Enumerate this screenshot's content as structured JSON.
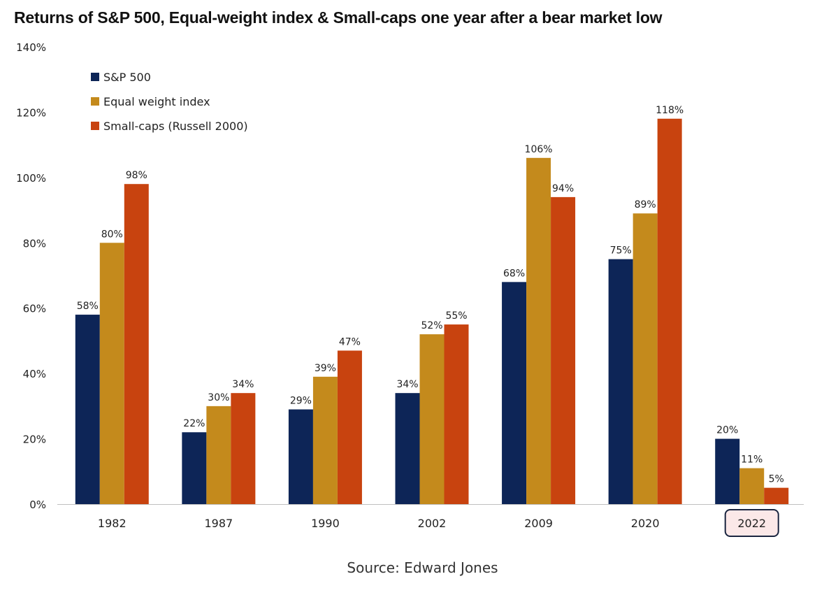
{
  "chart_data": {
    "type": "bar",
    "title": "Returns of S&P 500, Equal-weight index & Small-caps one year after a bear market low",
    "categories": [
      "1982",
      "1987",
      "1990",
      "2002",
      "2009",
      "2020",
      "2022"
    ],
    "highlighted_category": "2022",
    "series": [
      {
        "name": "S&P 500",
        "color": "#0d2557",
        "values": [
          58,
          22,
          29,
          34,
          68,
          75,
          20
        ],
        "labels": [
          "58%",
          "22%",
          "29%",
          "34%",
          "68%",
          "75%",
          "20%"
        ]
      },
      {
        "name": "Equal weight index",
        "color": "#c48a1c",
        "values": [
          80,
          30,
          39,
          52,
          106,
          89,
          11
        ],
        "labels": [
          "80%",
          "30%",
          "39%",
          "52%",
          "106%",
          "89%",
          "11%"
        ]
      },
      {
        "name": "Small-caps (Russell 2000)",
        "color": "#c8430f",
        "values": [
          98,
          34,
          47,
          55,
          94,
          118,
          5
        ],
        "labels": [
          "98%",
          "34%",
          "47%",
          "55%",
          "94%",
          "118%",
          "5%"
        ]
      }
    ],
    "ylim": [
      0,
      140
    ],
    "yticks": [
      "0%",
      "20%",
      "40%",
      "60%",
      "80%",
      "100%",
      "120%",
      "140%"
    ],
    "xlabel": "",
    "ylabel": "",
    "legend_position": "top-left",
    "grid": false
  },
  "source": "Source: Edward Jones",
  "highlight_color": "#fbe8e8",
  "highlight_border_color": "#1a2540"
}
